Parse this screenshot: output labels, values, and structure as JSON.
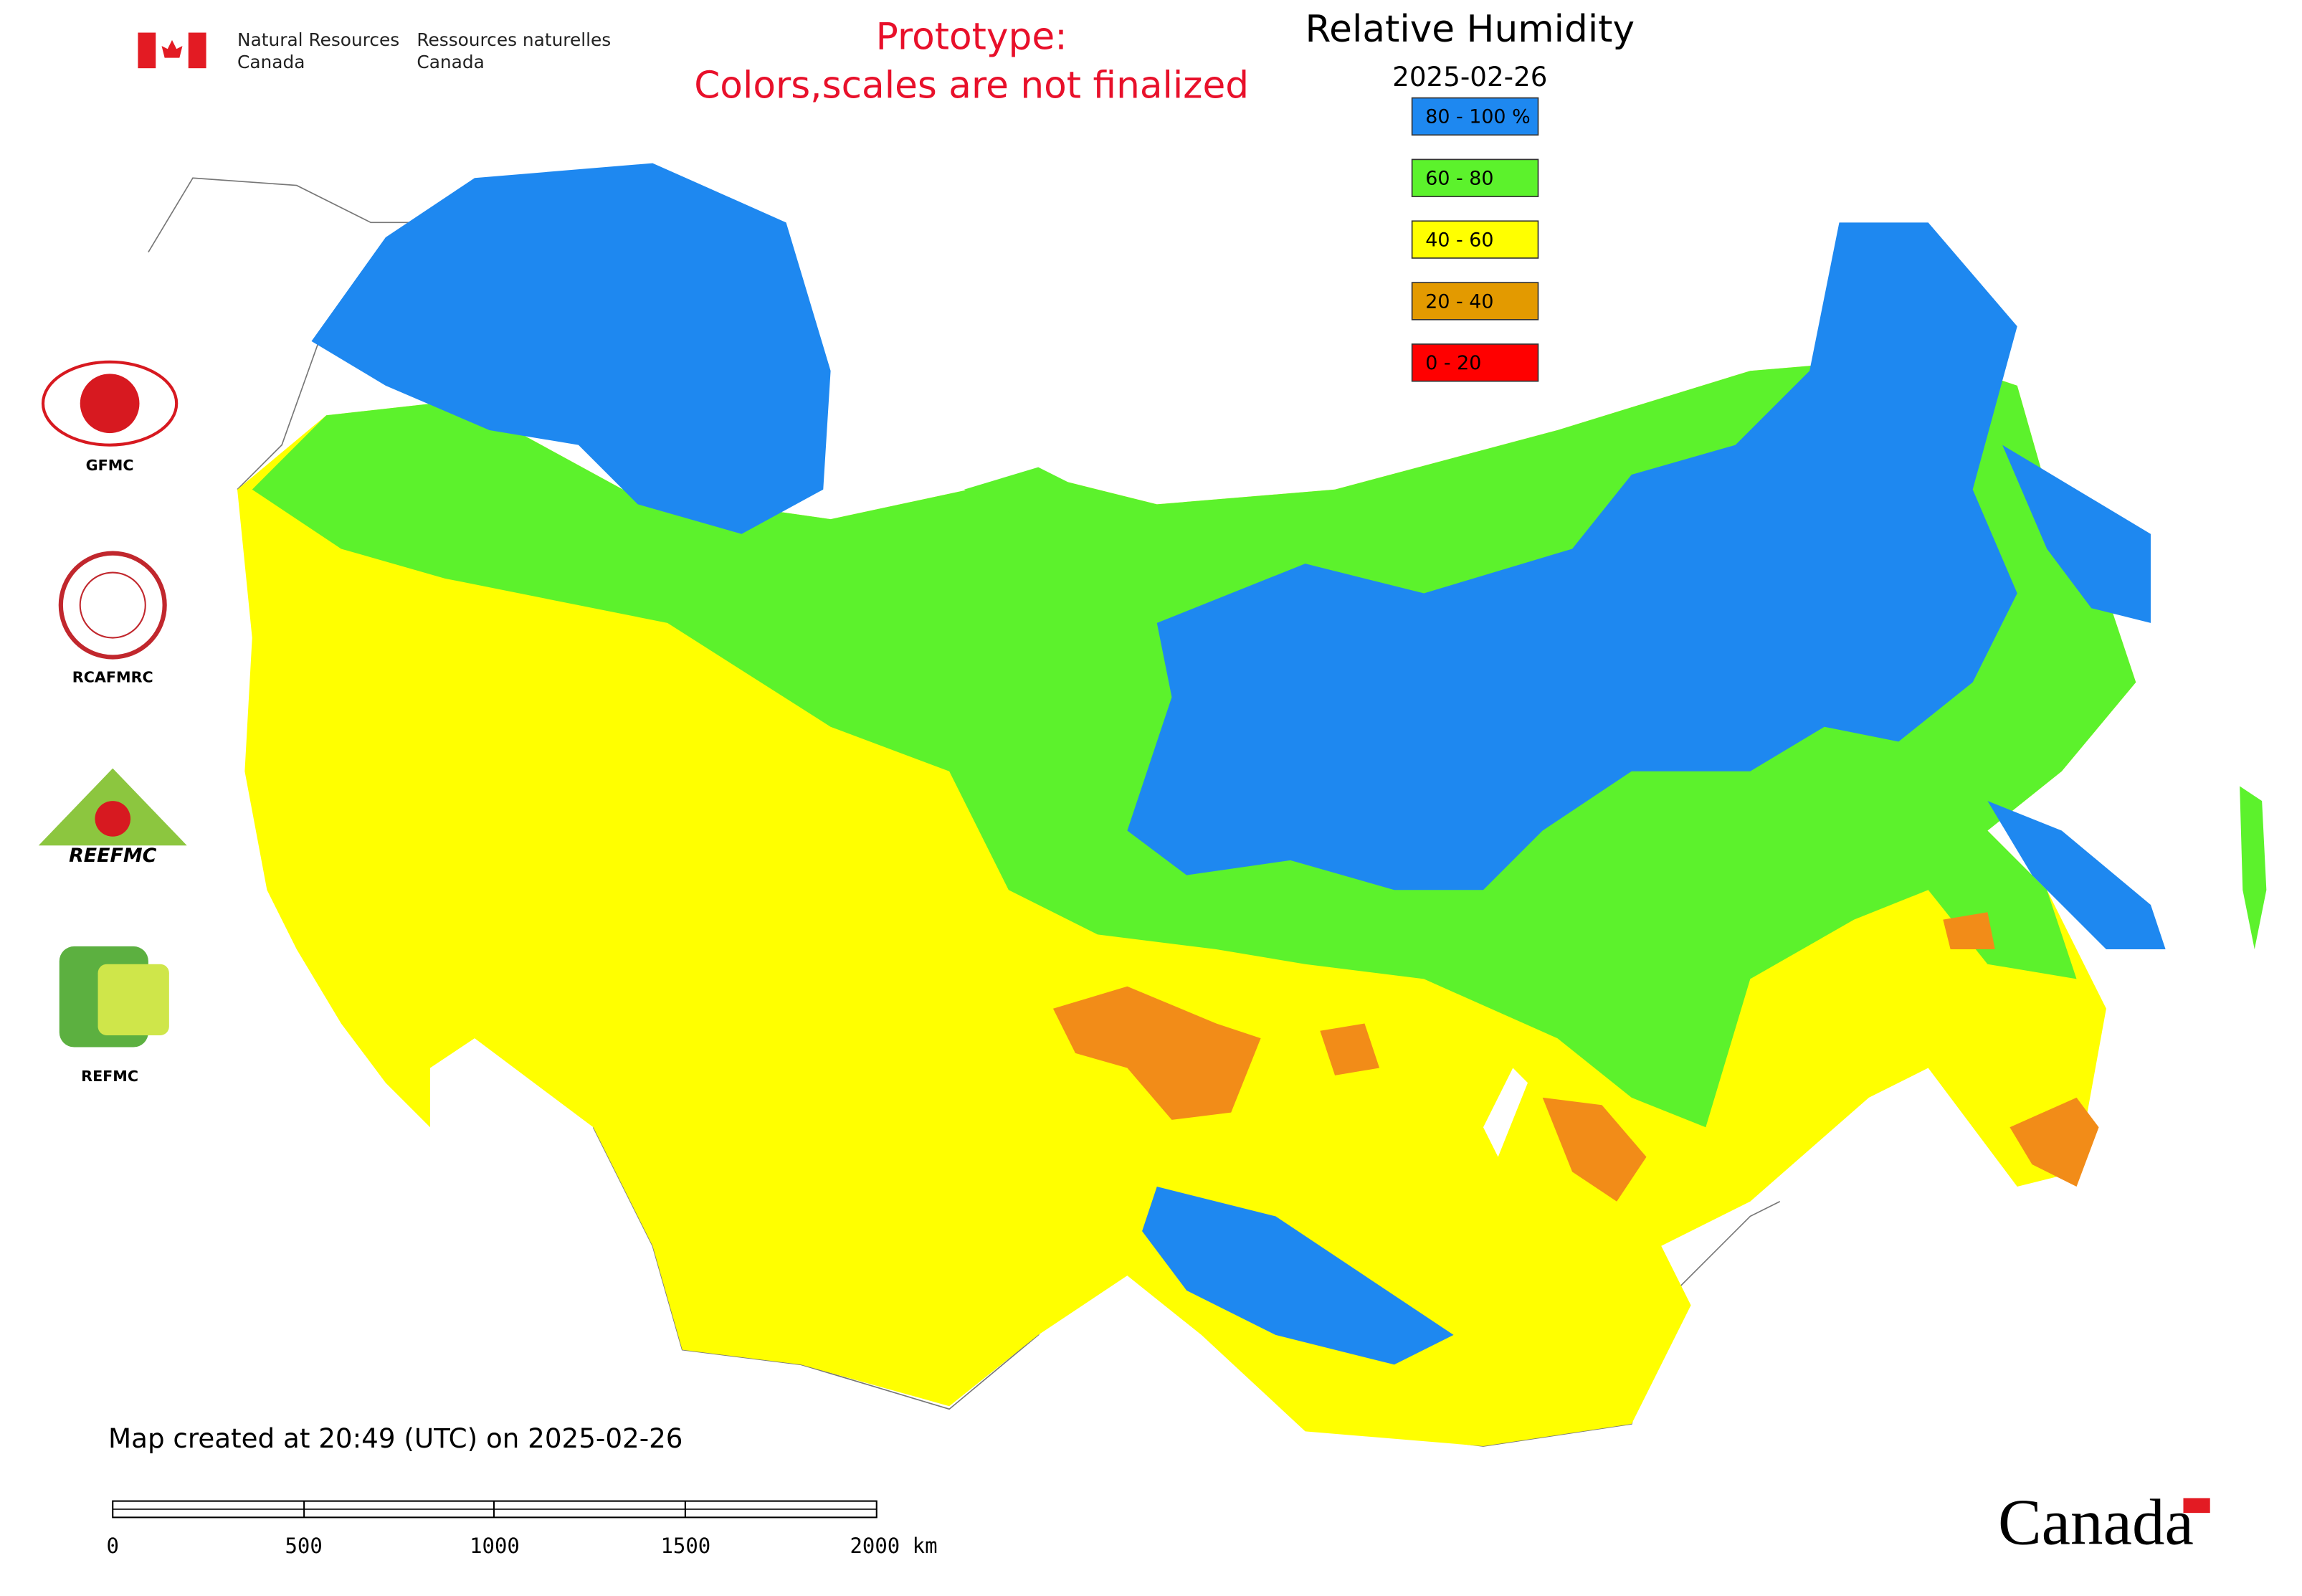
{
  "header": {
    "agency_en": [
      "Natural Resources",
      "Canada"
    ],
    "agency_fr": [
      "Ressources naturelles",
      "Canada"
    ],
    "notice": [
      "Prototype:",
      "Colors,scales are not finalized"
    ]
  },
  "title": "Relative Humidity",
  "date": "2025-02-26",
  "legend": [
    {
      "label": "80 - 100 %",
      "color": "#1e88f0"
    },
    {
      "label": "60 - 80",
      "color": "#5cf22c"
    },
    {
      "label": "40 - 60",
      "color": "#ffff00"
    },
    {
      "label": "20 - 40",
      "color": "#e39a00"
    },
    {
      "label": "0 - 20",
      "color": "#ff0000"
    }
  ],
  "logos": [
    "GFMC",
    "RCAFMRC",
    "REEFMC",
    "REFMC"
  ],
  "footer": "Map created at 20:49 (UTC) on 2025-02-26",
  "scale_bar": {
    "labels": [
      "0",
      "500",
      "1000",
      "1500",
      "2000 km"
    ]
  },
  "wordmark": "Canada"
}
